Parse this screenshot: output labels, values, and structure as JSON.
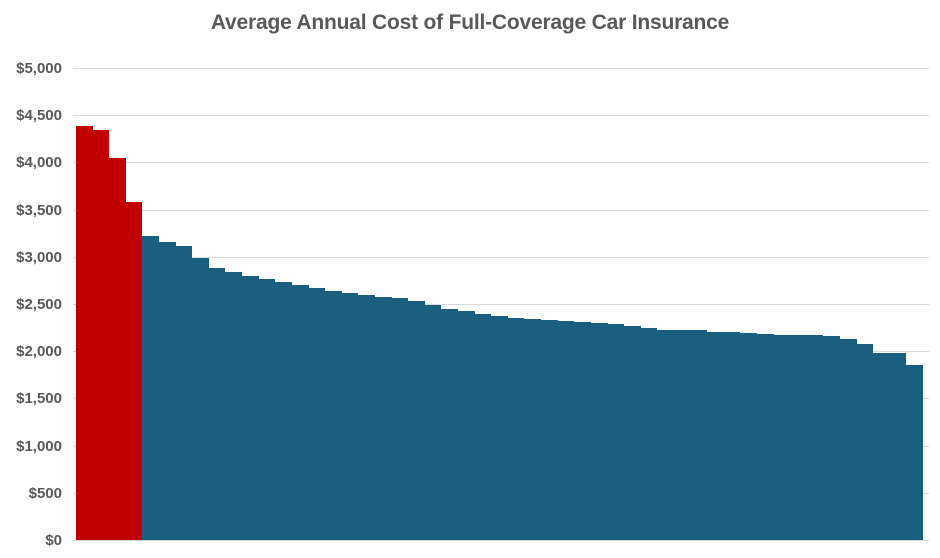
{
  "title": "Average Annual Cost of Full-Coverage Car Insurance",
  "colors": {
    "title_text": "#595959",
    "axis_label_text": "#595959",
    "gridline": "#d9d9d9",
    "background": "#ffffff",
    "highlight_bar": "#c00000",
    "default_bar": "#1a5f80"
  },
  "y_axis": {
    "tick_labels": [
      "$5,000",
      "$4,500",
      "$4,000",
      "$3,500",
      "$3,000",
      "$2,500",
      "$2,000",
      "$1,500",
      "$1,000",
      "$500",
      "$0"
    ],
    "min": 0,
    "max": 5000,
    "step": 500
  },
  "chart_data": {
    "type": "bar",
    "title": "Average Annual Cost of Full-Coverage Car Insurance",
    "xlabel": "",
    "ylabel": "",
    "ylim": [
      0,
      5000
    ],
    "y_tick_interval": 500,
    "grid": true,
    "legend": false,
    "x_tick_labels_visible": false,
    "bar_count": 51,
    "highlighted_first_n": 4,
    "highlight_color": "#c00000",
    "bar_color": "#1a5f80",
    "values": [
      4390,
      4345,
      4045,
      3580,
      3220,
      3160,
      3115,
      2985,
      2885,
      2835,
      2800,
      2770,
      2730,
      2705,
      2670,
      2640,
      2615,
      2600,
      2575,
      2560,
      2535,
      2485,
      2450,
      2425,
      2395,
      2372,
      2355,
      2338,
      2330,
      2315,
      2310,
      2295,
      2290,
      2270,
      2245,
      2228,
      2225,
      2222,
      2208,
      2202,
      2190,
      2182,
      2172,
      2170,
      2168,
      2166,
      2130,
      2080,
      1985,
      1980,
      1855
    ]
  }
}
